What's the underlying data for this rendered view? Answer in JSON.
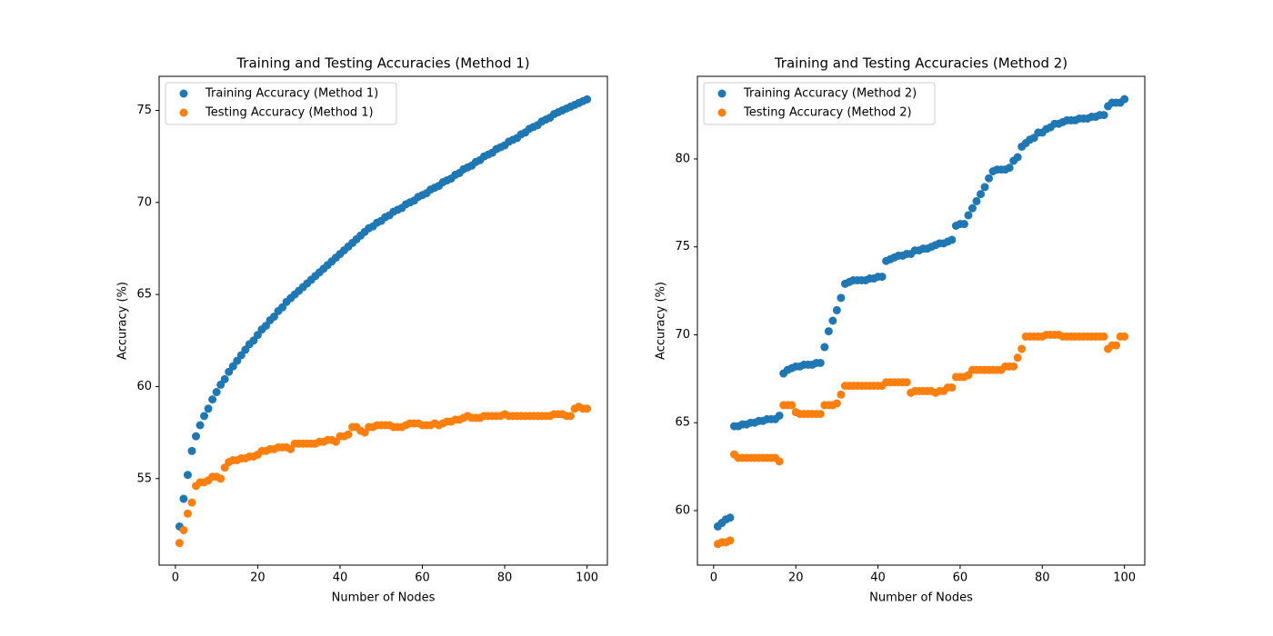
{
  "chart_data": [
    {
      "type": "scatter",
      "title": "Training and Testing Accuracies (Method 1)",
      "xlabel": "Number of Nodes",
      "ylabel": "Accuracy (%)",
      "x": [
        1,
        2,
        3,
        4,
        5,
        6,
        7,
        8,
        9,
        10,
        11,
        12,
        13,
        14,
        15,
        16,
        17,
        18,
        19,
        20,
        21,
        22,
        23,
        24,
        25,
        26,
        27,
        28,
        29,
        30,
        31,
        32,
        33,
        34,
        35,
        36,
        37,
        38,
        39,
        40,
        41,
        42,
        43,
        44,
        45,
        46,
        47,
        48,
        49,
        50,
        51,
        52,
        53,
        54,
        55,
        56,
        57,
        58,
        59,
        60,
        61,
        62,
        63,
        64,
        65,
        66,
        67,
        68,
        69,
        70,
        71,
        72,
        73,
        74,
        75,
        76,
        77,
        78,
        79,
        80,
        81,
        82,
        83,
        84,
        85,
        86,
        87,
        88,
        89,
        90,
        91,
        92,
        93,
        94,
        95,
        96,
        97,
        98,
        99,
        100
      ],
      "series": [
        {
          "name": "Training Accuracy (Method 1)",
          "color": "#1f77b4",
          "values": [
            52.4,
            53.9,
            55.2,
            56.5,
            57.3,
            57.9,
            58.4,
            58.8,
            59.3,
            59.7,
            60.1,
            60.4,
            60.8,
            61.1,
            61.4,
            61.7,
            62.0,
            62.3,
            62.5,
            62.8,
            63.1,
            63.3,
            63.6,
            63.8,
            64.1,
            64.3,
            64.6,
            64.8,
            65.0,
            65.2,
            65.4,
            65.6,
            65.8,
            66.0,
            66.2,
            66.4,
            66.6,
            66.8,
            67.0,
            67.2,
            67.4,
            67.6,
            67.8,
            68.0,
            68.2,
            68.4,
            68.6,
            68.7,
            68.9,
            69.0,
            69.2,
            69.3,
            69.5,
            69.6,
            69.7,
            69.9,
            70.0,
            70.1,
            70.3,
            70.4,
            70.5,
            70.7,
            70.8,
            70.9,
            71.1,
            71.2,
            71.3,
            71.5,
            71.6,
            71.8,
            71.9,
            72.0,
            72.2,
            72.3,
            72.5,
            72.6,
            72.7,
            72.9,
            73.0,
            73.1,
            73.3,
            73.4,
            73.5,
            73.7,
            73.8,
            74.0,
            74.1,
            74.2,
            74.4,
            74.5,
            74.6,
            74.8,
            74.9,
            75.0,
            75.1,
            75.2,
            75.3,
            75.4,
            75.5,
            75.6
          ]
        },
        {
          "name": "Testing Accuracy (Method 1)",
          "color": "#ff7f0e",
          "values": [
            51.5,
            52.2,
            53.1,
            53.7,
            54.6,
            54.8,
            54.8,
            54.9,
            55.1,
            55.1,
            55.0,
            55.6,
            55.9,
            56.0,
            56.0,
            56.1,
            56.1,
            56.2,
            56.2,
            56.3,
            56.5,
            56.5,
            56.6,
            56.6,
            56.7,
            56.7,
            56.7,
            56.6,
            56.9,
            56.9,
            56.9,
            56.9,
            56.9,
            56.9,
            57.0,
            57.0,
            57.1,
            57.1,
            57.0,
            57.3,
            57.3,
            57.4,
            57.8,
            57.8,
            57.6,
            57.5,
            57.8,
            57.8,
            57.9,
            57.9,
            57.9,
            57.9,
            57.8,
            57.8,
            57.8,
            57.9,
            58.0,
            58.0,
            58.0,
            57.9,
            57.9,
            57.9,
            58.0,
            57.9,
            58.0,
            58.1,
            58.1,
            58.2,
            58.2,
            58.3,
            58.4,
            58.3,
            58.3,
            58.3,
            58.4,
            58.4,
            58.4,
            58.4,
            58.4,
            58.5,
            58.4,
            58.4,
            58.4,
            58.4,
            58.4,
            58.4,
            58.4,
            58.4,
            58.4,
            58.4,
            58.4,
            58.5,
            58.5,
            58.5,
            58.4,
            58.4,
            58.8,
            58.9,
            58.8,
            58.8
          ]
        }
      ],
      "xlim": [
        -3.95,
        104.95
      ],
      "ylim": [
        50.3,
        76.85
      ],
      "xticks": [
        0,
        20,
        40,
        60,
        80,
        100
      ],
      "yticks": [
        55,
        60,
        65,
        70,
        75
      ],
      "legend": "upper left"
    },
    {
      "type": "scatter",
      "title": "Training and Testing Accuracies (Method 2)",
      "xlabel": "Number of Nodes",
      "ylabel": "Accuracy (%)",
      "x": [
        1,
        2,
        3,
        4,
        5,
        6,
        7,
        8,
        9,
        10,
        11,
        12,
        13,
        14,
        15,
        16,
        17,
        18,
        19,
        20,
        21,
        22,
        23,
        24,
        25,
        26,
        27,
        28,
        29,
        30,
        31,
        32,
        33,
        34,
        35,
        36,
        37,
        38,
        39,
        40,
        41,
        42,
        43,
        44,
        45,
        46,
        47,
        48,
        49,
        50,
        51,
        52,
        53,
        54,
        55,
        56,
        57,
        58,
        59,
        60,
        61,
        62,
        63,
        64,
        65,
        66,
        67,
        68,
        69,
        70,
        71,
        72,
        73,
        74,
        75,
        76,
        77,
        78,
        79,
        80,
        81,
        82,
        83,
        84,
        85,
        86,
        87,
        88,
        89,
        90,
        91,
        92,
        93,
        94,
        95,
        96,
        97,
        98,
        99,
        100
      ],
      "series": [
        {
          "name": "Training Accuracy (Method 2)",
          "color": "#1f77b4",
          "values": [
            59.1,
            59.3,
            59.5,
            59.6,
            64.8,
            64.8,
            64.9,
            64.9,
            65.0,
            65.0,
            65.1,
            65.1,
            65.2,
            65.2,
            65.2,
            65.4,
            67.8,
            68.0,
            68.1,
            68.2,
            68.2,
            68.3,
            68.3,
            68.3,
            68.4,
            68.4,
            69.3,
            70.2,
            70.8,
            71.4,
            72.1,
            72.9,
            73.0,
            73.1,
            73.1,
            73.1,
            73.1,
            73.2,
            73.2,
            73.3,
            73.3,
            74.2,
            74.3,
            74.4,
            74.5,
            74.5,
            74.6,
            74.6,
            74.8,
            74.8,
            74.9,
            74.9,
            75.0,
            75.1,
            75.2,
            75.2,
            75.3,
            75.4,
            76.2,
            76.3,
            76.3,
            76.8,
            77.2,
            77.6,
            78.0,
            78.4,
            78.9,
            79.3,
            79.4,
            79.4,
            79.4,
            79.5,
            79.9,
            80.1,
            80.7,
            80.9,
            81.1,
            81.2,
            81.5,
            81.5,
            81.7,
            81.8,
            82.0,
            82.0,
            82.1,
            82.2,
            82.2,
            82.2,
            82.3,
            82.3,
            82.3,
            82.4,
            82.4,
            82.5,
            82.5,
            83.0,
            83.2,
            83.2,
            83.2,
            83.4
          ]
        },
        {
          "name": "Testing Accuracy (Method 2)",
          "color": "#ff7f0e",
          "values": [
            58.1,
            58.2,
            58.2,
            58.3,
            63.2,
            63.0,
            63.0,
            63.0,
            63.0,
            63.0,
            63.0,
            63.0,
            63.0,
            63.0,
            63.0,
            62.8,
            66.0,
            66.0,
            66.0,
            65.6,
            65.5,
            65.5,
            65.5,
            65.5,
            65.5,
            65.5,
            66.0,
            66.0,
            66.0,
            66.1,
            66.6,
            67.1,
            67.1,
            67.1,
            67.1,
            67.1,
            67.1,
            67.1,
            67.1,
            67.1,
            67.1,
            67.3,
            67.3,
            67.3,
            67.3,
            67.3,
            67.3,
            66.7,
            66.8,
            66.8,
            66.8,
            66.8,
            66.8,
            66.7,
            66.8,
            66.8,
            67.0,
            67.0,
            67.6,
            67.6,
            67.6,
            67.7,
            68.0,
            68.0,
            68.0,
            68.0,
            68.0,
            68.0,
            68.0,
            68.0,
            68.2,
            68.2,
            68.2,
            68.7,
            69.2,
            69.9,
            69.9,
            69.9,
            69.9,
            69.9,
            70.0,
            70.0,
            70.0,
            70.0,
            69.9,
            69.9,
            69.9,
            69.9,
            69.9,
            69.9,
            69.9,
            69.9,
            69.9,
            69.9,
            69.9,
            69.2,
            69.4,
            69.4,
            69.9,
            69.9
          ]
        }
      ],
      "xlim": [
        -3.95,
        104.95
      ],
      "ylim": [
        56.9,
        84.7
      ],
      "xticks": [
        0,
        20,
        40,
        60,
        80,
        100
      ],
      "yticks": [
        60,
        65,
        70,
        75,
        80
      ],
      "legend": "upper left"
    }
  ]
}
